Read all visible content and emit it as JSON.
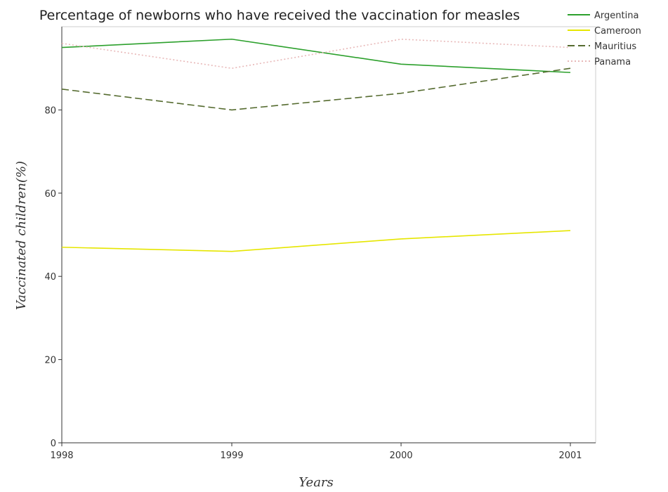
{
  "chart_data": {
    "type": "line",
    "title": "Percentage of newborns who have received the vaccination for measles",
    "xlabel": "Years",
    "ylabel": "Vaccinated children(%)",
    "categories": [
      "1998",
      "1999",
      "2000",
      "2001"
    ],
    "ylim": [
      0,
      100
    ],
    "yticks": [
      0,
      20,
      40,
      60,
      80
    ],
    "legend_position": "top-right",
    "series": [
      {
        "name": "Argentina",
        "color": "#2ca02c",
        "dash": "solid",
        "values": [
          95,
          97,
          91,
          89
        ]
      },
      {
        "name": "Cameroon",
        "color": "#e6e600",
        "dash": "solid",
        "values": [
          47,
          46,
          49,
          51
        ]
      },
      {
        "name": "Mauritius",
        "color": "#556b2f",
        "dash": "dashed",
        "values": [
          85,
          80,
          84,
          90
        ]
      },
      {
        "name": "Panama",
        "color": "#e8b8b8",
        "dash": "dotted",
        "values": [
          96,
          90,
          97,
          95
        ]
      }
    ]
  }
}
